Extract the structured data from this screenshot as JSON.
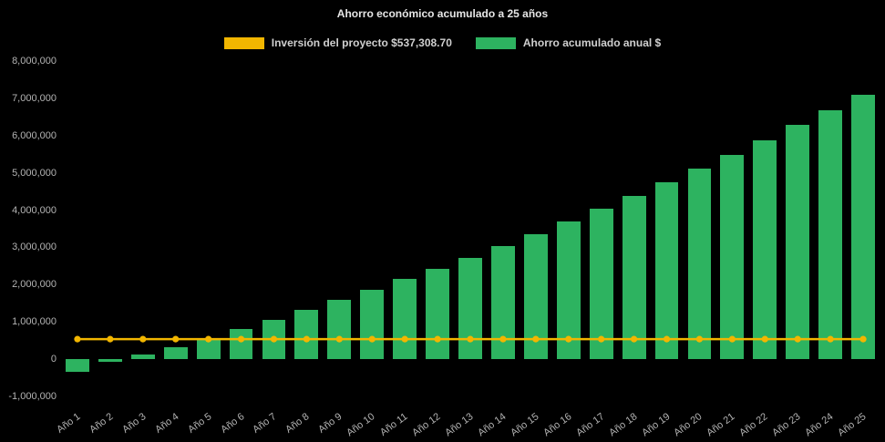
{
  "title": "Ahorro económico acumulado a 25 años",
  "legend": [
    {
      "label": "Inversión del proyecto $537,308.70",
      "color": "#f2b600"
    },
    {
      "label": "Ahorro acumulado anual $",
      "color": "#2db360"
    }
  ],
  "chart_data": {
    "type": "bar",
    "title": "Ahorro económico acumulado a 25 años",
    "categories": [
      "Año 1",
      "Año 2",
      "Año 3",
      "Año 4",
      "Año 5",
      "Año 6",
      "Año 7",
      "Año 8",
      "Año 9",
      "Año 10",
      "Año 11",
      "Año 12",
      "Año 13",
      "Año 14",
      "Año 15",
      "Año 16",
      "Año 17",
      "Año 18",
      "Año 19",
      "Año 20",
      "Año 21",
      "Año 22",
      "Año 23",
      "Año 24",
      "Año 25"
    ],
    "series": [
      {
        "name": "Ahorro acumulado anual $",
        "type": "bar",
        "color": "#2db360",
        "values": [
          -350000,
          -80000,
          120000,
          310000,
          560000,
          820000,
          1060000,
          1330000,
          1600000,
          1870000,
          2150000,
          2430000,
          2720000,
          3030000,
          3360000,
          3690000,
          4030000,
          4380000,
          4740000,
          5110000,
          5490000,
          5880000,
          6280000,
          6680000,
          7100000
        ]
      },
      {
        "name": "Inversión del proyecto $537,308.70",
        "type": "line",
        "color": "#f2b600",
        "constant_value": 537308.7
      }
    ],
    "xlabel": "",
    "ylabel": "",
    "ylim": [
      -1000000,
      8000000
    ],
    "ytick_step": 1000000,
    "grid": false,
    "legend_position": "top"
  }
}
